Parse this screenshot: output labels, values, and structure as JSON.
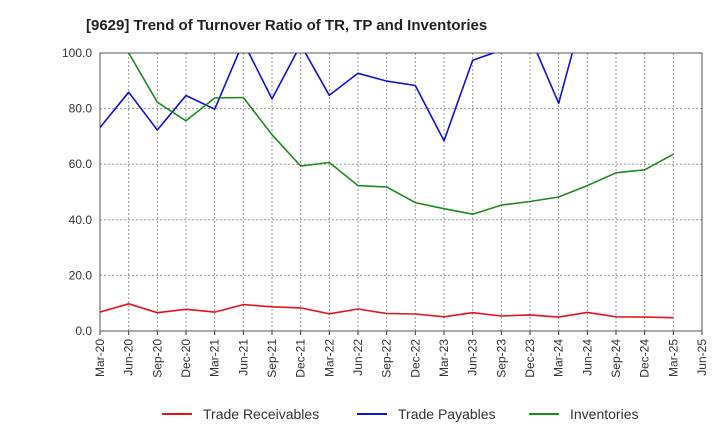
{
  "chart_data": {
    "type": "line",
    "title": "[9629]  Trend of Turnover Ratio of TR, TP and Inventories",
    "xlabel": "",
    "ylabel": "",
    "x": [
      "Mar-20",
      "Jun-20",
      "Sep-20",
      "Dec-20",
      "Mar-21",
      "Jun-21",
      "Sep-21",
      "Dec-21",
      "Mar-22",
      "Jun-22",
      "Sep-22",
      "Dec-22",
      "Mar-23",
      "Jun-23",
      "Sep-23",
      "Dec-23",
      "Mar-24",
      "Jun-24",
      "Sep-24",
      "Dec-24",
      "Mar-25",
      "Jun-25"
    ],
    "ylim": [
      0,
      100
    ],
    "yticks": [
      0,
      20,
      40,
      60,
      80,
      100
    ],
    "ytick_labels": [
      "0.0",
      "20.0",
      "40.0",
      "60.0",
      "80.0",
      "100.0"
    ],
    "grid": true,
    "legend_position": "bottom",
    "series": [
      {
        "name": "Trade Receivables",
        "color": "#e8121b",
        "values": [
          6.8,
          9.8,
          6.6,
          7.8,
          6.8,
          9.5,
          8.7,
          8.3,
          6.2,
          7.9,
          6.3,
          6.1,
          5.1,
          6.6,
          5.4,
          5.8,
          5.0,
          6.7,
          5.1,
          5.0,
          4.8,
          null
        ]
      },
      {
        "name": "Trade Payables",
        "color": "#0f12d8",
        "values": [
          73.2,
          85.9,
          72.3,
          84.7,
          79.8,
          104,
          83.5,
          103,
          84.8,
          92.7,
          89.9,
          88.3,
          68.4,
          97.4,
          101,
          106,
          81.9,
          120,
          null,
          null,
          null,
          null
        ]
      },
      {
        "name": "Inventories",
        "color": "#1f8a1f",
        "values": [
          118,
          100,
          82.3,
          75.6,
          83.8,
          84.0,
          70.6,
          59.3,
          60.6,
          52.3,
          51.8,
          46.2,
          44.0,
          42.0,
          45.3,
          46.6,
          48.2,
          52.3,
          56.9,
          58.0,
          63.6,
          null
        ]
      }
    ]
  }
}
